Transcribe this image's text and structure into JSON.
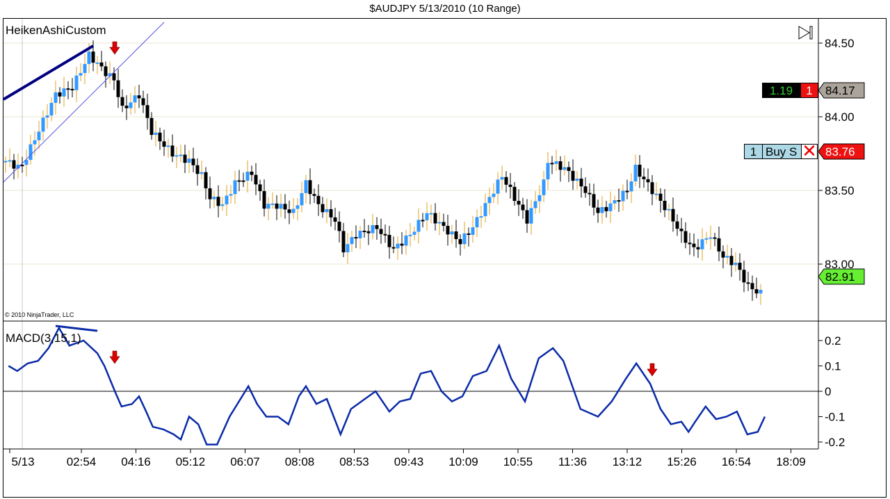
{
  "window": {
    "title": "$AUDJPY  5/13/2010 (10 Range)"
  },
  "price_panel": {
    "indicator_label": "HeikenAshiCustom",
    "copyright": "© 2010 NinjaTrader, LLC",
    "scroll_end_icon": "skip-to-end-icon",
    "position_pnl": "1.19",
    "position_qty": "1",
    "position_price": "84.17",
    "order_qty": "1",
    "order_label": "Buy S",
    "order_cancel_icon": "close-x-icon",
    "order_price": "83.76",
    "last_price": "82.91",
    "colors": {
      "up": "#3399ff",
      "down": "#000000",
      "up_wick": "#e0a020",
      "trendline": "#000080",
      "channel": "#5050e0",
      "arrow": "#dd0000"
    }
  },
  "macd_panel": {
    "label": "MACD(3,15,1)"
  },
  "chart_data": [
    {
      "type": "candlestick",
      "title": "$AUDJPY  5/13/2010 (10 Range)",
      "y_ticks": [
        "84.50",
        "84.00",
        "83.50",
        "83.00"
      ],
      "y_tick_values": [
        84.5,
        84.0,
        83.5,
        83.0
      ],
      "ylim": [
        82.7,
        84.68
      ],
      "bars": 182,
      "close_path": [
        [
          0,
          83.7
        ],
        [
          3.7,
          83.65
        ],
        [
          7,
          83.85
        ],
        [
          12,
          84.15
        ],
        [
          16,
          84.2
        ],
        [
          20,
          84.42
        ],
        [
          24,
          84.3
        ],
        [
          26,
          84.25
        ],
        [
          28,
          84.05
        ],
        [
          32,
          84.15
        ],
        [
          35,
          83.9
        ],
        [
          40,
          83.75
        ],
        [
          44,
          83.7
        ],
        [
          47,
          83.6
        ],
        [
          49,
          83.45
        ],
        [
          52,
          83.4
        ],
        [
          55,
          83.55
        ],
        [
          59,
          83.62
        ],
        [
          62,
          83.4
        ],
        [
          65,
          83.4
        ],
        [
          69,
          83.35
        ],
        [
          72,
          83.55
        ],
        [
          75,
          83.4
        ],
        [
          79,
          83.3
        ],
        [
          81,
          83.1
        ],
        [
          84,
          83.2
        ],
        [
          89,
          83.25
        ],
        [
          93,
          83.1
        ],
        [
          97,
          83.2
        ],
        [
          101,
          83.35
        ],
        [
          105,
          83.25
        ],
        [
          109,
          83.15
        ],
        [
          112,
          83.25
        ],
        [
          115,
          83.4
        ],
        [
          119,
          83.6
        ],
        [
          122,
          83.45
        ],
        [
          125,
          83.3
        ],
        [
          129,
          83.55
        ],
        [
          130,
          83.7
        ],
        [
          134,
          83.65
        ],
        [
          139,
          83.5
        ],
        [
          142,
          83.35
        ],
        [
          145,
          83.4
        ],
        [
          149,
          83.5
        ],
        [
          151,
          83.65
        ],
        [
          155,
          83.5
        ],
        [
          159,
          83.35
        ],
        [
          162,
          83.2
        ],
        [
          165,
          83.1
        ],
        [
          169,
          83.2
        ],
        [
          172,
          83.05
        ],
        [
          175,
          83.0
        ],
        [
          178,
          82.85
        ],
        [
          181,
          82.8
        ]
      ]
    },
    {
      "type": "line",
      "title": "MACD(3,15,1)",
      "y_ticks": [
        "0.2",
        "0.1",
        "0",
        "-0.1",
        "-0.2"
      ],
      "y_tick_values": [
        0.2,
        0.1,
        0,
        -0.1,
        -0.2
      ],
      "ylim": [
        -0.235,
        0.25
      ],
      "series": [
        {
          "name": "MACD",
          "color": "#0a2aa8",
          "points": [
            [
              0.7,
              0.1
            ],
            [
              2.8,
              0.08
            ],
            [
              5.3,
              0.11
            ],
            [
              7.8,
              0.12
            ],
            [
              10.3,
              0.17
            ],
            [
              12.8,
              0.25
            ],
            [
              15.3,
              0.18
            ],
            [
              18.7,
              0.2
            ],
            [
              22,
              0.15
            ],
            [
              23.7,
              0.1
            ],
            [
              26.2,
              0
            ],
            [
              27.8,
              -0.06
            ],
            [
              30.3,
              -0.05
            ],
            [
              32,
              -0.02
            ],
            [
              33.7,
              -0.08
            ],
            [
              35.3,
              -0.14
            ],
            [
              37.8,
              -0.15
            ],
            [
              40.3,
              -0.17
            ],
            [
              42,
              -0.19
            ],
            [
              44,
              -0.1
            ],
            [
              46.2,
              -0.13
            ],
            [
              48.2,
              -0.21
            ],
            [
              50.7,
              -0.21
            ],
            [
              53.7,
              -0.1
            ],
            [
              58.2,
              0.02
            ],
            [
              60.3,
              -0.05
            ],
            [
              62.5,
              -0.1
            ],
            [
              65.3,
              -0.1
            ],
            [
              67.8,
              -0.13
            ],
            [
              70.3,
              -0.02
            ],
            [
              72,
              0.02
            ],
            [
              74.5,
              -0.05
            ],
            [
              77,
              -0.03
            ],
            [
              80.3,
              -0.17
            ],
            [
              82.8,
              -0.07
            ],
            [
              85.3,
              -0.04
            ],
            [
              88.7,
              0
            ],
            [
              92,
              -0.08
            ],
            [
              94.5,
              -0.04
            ],
            [
              97,
              -0.03
            ],
            [
              99.5,
              0.07
            ],
            [
              102,
              0.08
            ],
            [
              104.5,
              0
            ],
            [
              107,
              -0.04
            ],
            [
              109.5,
              -0.02
            ],
            [
              112,
              0.06
            ],
            [
              115.3,
              0.08
            ],
            [
              118.3,
              0.18
            ],
            [
              121.2,
              0.05
            ],
            [
              124.5,
              -0.04
            ],
            [
              127.8,
              0.13
            ],
            [
              131.2,
              0.17
            ],
            [
              133.7,
              0.12
            ],
            [
              137.8,
              -0.07
            ],
            [
              142,
              -0.1
            ],
            [
              145.3,
              -0.04
            ],
            [
              148.7,
              0.05
            ],
            [
              151.2,
              0.11
            ],
            [
              154.5,
              0.03
            ],
            [
              157,
              -0.07
            ],
            [
              159.5,
              -0.13
            ],
            [
              162,
              -0.12
            ],
            [
              163.7,
              -0.16
            ],
            [
              165.3,
              -0.12
            ],
            [
              167.8,
              -0.06
            ],
            [
              170.3,
              -0.11
            ],
            [
              172.8,
              -0.1
            ],
            [
              175.3,
              -0.08
            ],
            [
              177.8,
              -0.17
            ],
            [
              180.3,
              -0.16
            ],
            [
              182,
              -0.1
            ]
          ]
        }
      ]
    }
  ],
  "x_axis": {
    "labels": [
      "5/13",
      "02:54",
      "04:16",
      "05:12",
      "06:07",
      "08:08",
      "08:53",
      "09:43",
      "10:09",
      "10:55",
      "11:36",
      "13:12",
      "15:26",
      "16:54",
      "18:09"
    ]
  }
}
